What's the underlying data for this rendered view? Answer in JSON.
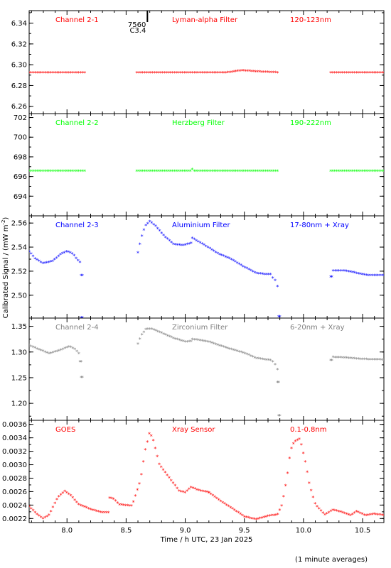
{
  "footer_note": "(1 minute averages)",
  "chart_data": [
    {
      "type": "scatter",
      "labels": {
        "channel": "Channel 2-1",
        "filter": "Lyman-alpha Filter",
        "band": "120-123nm"
      },
      "color": "#ff0000",
      "xlim": [
        7.68,
        10.68
      ],
      "ylim": [
        6.253,
        6.352
      ],
      "yticks": [
        6.26,
        6.28,
        6.3,
        6.32,
        6.34
      ],
      "ytick_labels": [
        "6.26",
        "6.28",
        "6.30",
        "6.32",
        "6.34"
      ],
      "annotation": {
        "x": 8.68,
        "line1": "7560",
        "line2": "C3.4"
      },
      "series": [
        {
          "segments": [
            {
              "x_start": 7.68,
              "x_end": 8.15,
              "keys": [
                [
                  7.68,
                  6.292
                ],
                [
                  8.15,
                  6.292
                ]
              ]
            },
            {
              "x_start": 8.59,
              "x_end": 9.78,
              "keys": [
                [
                  8.59,
                  6.292
                ],
                [
                  9.35,
                  6.292
                ],
                [
                  9.48,
                  6.294
                ],
                [
                  9.6,
                  6.293
                ],
                [
                  9.78,
                  6.292
                ]
              ]
            },
            {
              "x_start": 10.23,
              "x_end": 10.68,
              "keys": [
                [
                  10.23,
                  6.292
                ],
                [
                  10.68,
                  6.292
                ]
              ]
            }
          ]
        }
      ]
    },
    {
      "type": "scatter",
      "labels": {
        "channel": "Channel 2-2",
        "filter": "Herzberg Filter",
        "band": "190-222nm"
      },
      "color": "#00ff00",
      "xlim": [
        7.68,
        10.68
      ],
      "ylim": [
        692.0,
        702.4
      ],
      "yticks": [
        694,
        696,
        698,
        700,
        702
      ],
      "ytick_labels": [
        "694",
        "696",
        "698",
        "700",
        "702"
      ],
      "series": [
        {
          "segments": [
            {
              "x_start": 7.68,
              "x_end": 8.15,
              "keys": [
                [
                  7.68,
                  696.5
                ],
                [
                  8.15,
                  696.5
                ]
              ]
            },
            {
              "x_start": 8.59,
              "x_end": 9.78,
              "keys": [
                [
                  8.59,
                  696.5
                ],
                [
                  9.05,
                  696.5
                ],
                [
                  9.06,
                  696.7
                ],
                [
                  9.07,
                  696.5
                ],
                [
                  9.78,
                  696.5
                ]
              ]
            },
            {
              "x_start": 10.23,
              "x_end": 10.68,
              "keys": [
                [
                  10.23,
                  696.5
                ],
                [
                  10.68,
                  696.5
                ]
              ]
            }
          ]
        }
      ]
    },
    {
      "type": "scatter",
      "labels": {
        "channel": "Channel 2-3",
        "filter": "Aluminium Filter",
        "band": "17-80nm + Xray"
      },
      "color": "#0000ff",
      "xlim": [
        7.68,
        10.68
      ],
      "ylim": [
        2.481,
        2.566
      ],
      "yticks": [
        2.5,
        2.52,
        2.54,
        2.56
      ],
      "ytick_labels": [
        "2.50",
        "2.52",
        "2.54",
        "2.56"
      ],
      "series": [
        {
          "segments": [
            {
              "x_start": 7.68,
              "x_end": 8.11,
              "keys": [
                [
                  7.68,
                  2.536
                ],
                [
                  7.73,
                  2.53
                ],
                [
                  7.8,
                  2.526
                ],
                [
                  7.88,
                  2.528
                ],
                [
                  7.95,
                  2.534
                ],
                [
                  8.0,
                  2.536
                ],
                [
                  8.05,
                  2.534
                ],
                [
                  8.08,
                  2.53
                ],
                [
                  8.11,
                  2.527
                ]
              ]
            },
            {
              "x_start": 8.12,
              "x_end": 8.13,
              "keys": [
                [
                  8.12,
                  2.516
                ],
                [
                  8.13,
                  2.516
                ]
              ]
            },
            {
              "x_start": 8.12,
              "x_end": 8.13,
              "keys": [
                [
                  8.12,
                  2.481
                ],
                [
                  8.13,
                  2.481
                ]
              ]
            },
            {
              "x_start": 8.6,
              "x_end": 9.05,
              "keys": [
                [
                  8.6,
                  2.535
                ],
                [
                  8.63,
                  2.548
                ],
                [
                  8.66,
                  2.557
                ],
                [
                  8.7,
                  2.561
                ],
                [
                  8.75,
                  2.557
                ],
                [
                  8.82,
                  2.549
                ],
                [
                  8.9,
                  2.542
                ],
                [
                  8.98,
                  2.541
                ],
                [
                  9.05,
                  2.543
                ]
              ]
            },
            {
              "x_start": 9.06,
              "x_end": 9.72,
              "keys": [
                [
                  9.06,
                  2.547
                ],
                [
                  9.15,
                  2.542
                ],
                [
                  9.2,
                  2.539
                ],
                [
                  9.28,
                  2.534
                ],
                [
                  9.38,
                  2.53
                ],
                [
                  9.5,
                  2.523
                ],
                [
                  9.6,
                  2.518
                ],
                [
                  9.68,
                  2.517
                ],
                [
                  9.72,
                  2.517
                ]
              ]
            },
            {
              "x_start": 9.74,
              "x_end": 9.78,
              "keys": [
                [
                  9.74,
                  2.514
                ],
                [
                  9.76,
                  2.512
                ],
                [
                  9.78,
                  2.507
                ]
              ]
            },
            {
              "x_start": 9.79,
              "x_end": 9.8,
              "keys": [
                [
                  9.79,
                  2.482
                ],
                [
                  9.8,
                  2.482
                ]
              ]
            },
            {
              "x_start": 10.23,
              "x_end": 10.24,
              "keys": [
                [
                  10.23,
                  2.515
                ],
                [
                  10.24,
                  2.515
                ]
              ]
            },
            {
              "x_start": 10.25,
              "x_end": 10.68,
              "keys": [
                [
                  10.25,
                  2.52
                ],
                [
                  10.35,
                  2.52
                ],
                [
                  10.45,
                  2.518
                ],
                [
                  10.55,
                  2.516
                ],
                [
                  10.68,
                  2.516
                ]
              ]
            }
          ]
        }
      ]
    },
    {
      "type": "scatter",
      "labels": {
        "channel": "Channel 2-4",
        "filter": "Zirconium Filter",
        "band": "6-20nm + Xray"
      },
      "color": "#808080",
      "xlim": [
        7.68,
        10.68
      ],
      "ylim": [
        1.167,
        1.366
      ],
      "yticks": [
        1.2,
        1.25,
        1.3,
        1.35
      ],
      "ytick_labels": [
        "1.20",
        "1.25",
        "1.30",
        "1.35"
      ],
      "series": [
        {
          "segments": [
            {
              "x_start": 7.68,
              "x_end": 8.1,
              "keys": [
                [
                  7.68,
                  1.312
                ],
                [
                  7.75,
                  1.305
                ],
                [
                  7.85,
                  1.296
                ],
                [
                  7.95,
                  1.303
                ],
                [
                  8.02,
                  1.31
                ],
                [
                  8.07,
                  1.304
                ],
                [
                  8.1,
                  1.296
                ]
              ]
            },
            {
              "x_start": 8.11,
              "x_end": 8.12,
              "keys": [
                [
                  8.11,
                  1.28
                ],
                [
                  8.12,
                  1.28
                ]
              ]
            },
            {
              "x_start": 8.12,
              "x_end": 8.13,
              "keys": [
                [
                  8.12,
                  1.25
                ],
                [
                  8.13,
                  1.25
                ]
              ]
            },
            {
              "x_start": 8.6,
              "x_end": 9.05,
              "keys": [
                [
                  8.6,
                  1.315
                ],
                [
                  8.63,
                  1.332
                ],
                [
                  8.67,
                  1.344
                ],
                [
                  8.72,
                  1.344
                ],
                [
                  8.8,
                  1.336
                ],
                [
                  8.9,
                  1.326
                ],
                [
                  9.0,
                  1.319
                ],
                [
                  9.05,
                  1.32
                ]
              ]
            },
            {
              "x_start": 9.06,
              "x_end": 9.72,
              "keys": [
                [
                  9.06,
                  1.324
                ],
                [
                  9.2,
                  1.319
                ],
                [
                  9.35,
                  1.307
                ],
                [
                  9.5,
                  1.297
                ],
                [
                  9.6,
                  1.287
                ],
                [
                  9.72,
                  1.283
                ]
              ]
            },
            {
              "x_start": 9.74,
              "x_end": 9.78,
              "keys": [
                [
                  9.74,
                  1.28
                ],
                [
                  9.76,
                  1.275
                ],
                [
                  9.78,
                  1.265
                ]
              ]
            },
            {
              "x_start": 9.78,
              "x_end": 9.79,
              "keys": [
                [
                  9.78,
                  1.24
                ],
                [
                  9.79,
                  1.24
                ]
              ]
            },
            {
              "x_start": 9.79,
              "x_end": 9.8,
              "keys": [
                [
                  9.79,
                  1.175
                ],
                [
                  9.8,
                  1.175
                ]
              ]
            },
            {
              "x_start": 10.23,
              "x_end": 10.24,
              "keys": [
                [
                  10.23,
                  1.283
                ],
                [
                  10.24,
                  1.283
                ]
              ]
            },
            {
              "x_start": 10.25,
              "x_end": 10.68,
              "keys": [
                [
                  10.25,
                  1.289
                ],
                [
                  10.35,
                  1.288
                ],
                [
                  10.5,
                  1.285
                ],
                [
                  10.68,
                  1.284
                ]
              ]
            }
          ]
        }
      ]
    },
    {
      "type": "scatter",
      "labels": {
        "channel": "GOES",
        "filter": "Xray Sensor",
        "band": "0.1-0.8nm"
      },
      "color": "#ff0000",
      "xlim": [
        7.68,
        10.68
      ],
      "ylim": [
        0.00214,
        0.00366
      ],
      "yticks": [
        0.0022,
        0.0024,
        0.0026,
        0.0028,
        0.003,
        0.0032,
        0.0034,
        0.0036
      ],
      "ytick_labels": [
        "0.0022",
        "0.0024",
        "0.0026",
        "0.0028",
        "0.0030",
        "0.0032",
        "0.0034",
        "0.0036"
      ],
      "xticks": [
        8.0,
        8.5,
        9.0,
        9.5,
        10.0,
        10.5
      ],
      "xtick_labels": [
        "8.0",
        "8.5",
        "9.0",
        "9.5",
        "10.0",
        "10.5"
      ],
      "xlabel": "Time / h UTC, 23 Jan 2025",
      "series": [
        {
          "segments": [
            {
              "x_start": 7.68,
              "x_end": 8.35,
              "keys": [
                [
                  7.68,
                  0.00237
                ],
                [
                  7.75,
                  0.00225
                ],
                [
                  7.8,
                  0.00219
                ],
                [
                  7.85,
                  0.00225
                ],
                [
                  7.92,
                  0.0025
                ],
                [
                  7.98,
                  0.0026
                ],
                [
                  8.03,
                  0.00254
                ],
                [
                  8.1,
                  0.0024
                ],
                [
                  8.2,
                  0.00233
                ],
                [
                  8.3,
                  0.00228
                ],
                [
                  8.35,
                  0.00228
                ]
              ]
            },
            {
              "x_start": 8.36,
              "x_end": 9.2,
              "keys": [
                [
                  8.36,
                  0.0025
                ],
                [
                  8.4,
                  0.00248
                ],
                [
                  8.44,
                  0.0024
                ],
                [
                  8.55,
                  0.00238
                ],
                [
                  8.62,
                  0.00275
                ],
                [
                  8.66,
                  0.0032
                ],
                [
                  8.7,
                  0.00348
                ],
                [
                  8.73,
                  0.00335
                ],
                [
                  8.78,
                  0.003
                ],
                [
                  8.85,
                  0.00283
                ],
                [
                  8.95,
                  0.0026
                ],
                [
                  9.0,
                  0.00258
                ],
                [
                  9.05,
                  0.00266
                ],
                [
                  9.1,
                  0.00262
                ],
                [
                  9.2,
                  0.00258
                ]
              ]
            },
            {
              "x_start": 9.2,
              "x_end": 10.68,
              "keys": [
                [
                  9.2,
                  0.00258
                ],
                [
                  9.3,
                  0.00245
                ],
                [
                  9.4,
                  0.00234
                ],
                [
                  9.5,
                  0.00222
                ],
                [
                  9.6,
                  0.00218
                ],
                [
                  9.7,
                  0.00223
                ],
                [
                  9.78,
                  0.00225
                ],
                [
                  9.82,
                  0.0024
                ],
                [
                  9.86,
                  0.0028
                ],
                [
                  9.89,
                  0.0032
                ],
                [
                  9.92,
                  0.00333
                ],
                [
                  9.97,
                  0.00338
                ],
                [
                  10.02,
                  0.003
                ],
                [
                  10.05,
                  0.0027
                ],
                [
                  10.1,
                  0.0024
                ],
                [
                  10.18,
                  0.00225
                ],
                [
                  10.25,
                  0.00232
                ],
                [
                  10.32,
                  0.00229
                ],
                [
                  10.4,
                  0.00224
                ],
                [
                  10.45,
                  0.0023
                ],
                [
                  10.52,
                  0.00224
                ],
                [
                  10.6,
                  0.00226
                ],
                [
                  10.68,
                  0.00224
                ]
              ]
            }
          ]
        }
      ]
    }
  ],
  "ylabel": {
    "prefix": "Calibrated Signal / (mW m",
    "sup": "-2",
    "suffix": ")"
  }
}
